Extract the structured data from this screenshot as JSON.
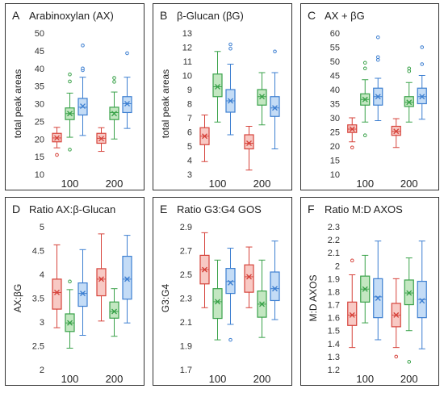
{
  "colors": {
    "frame": "#333333",
    "red": "#d6433b",
    "red_fill": "#f8c9c4",
    "green": "#3aa24a",
    "green_fill": "#c3e7c1",
    "blue": "#3d7fd1",
    "blue_fill": "#c4dcf6"
  },
  "chart_data": [
    {
      "type": "box",
      "panel": "A",
      "title": "Arabinoxylan (AX)",
      "ylabel": "total peak areas",
      "ylim": [
        10,
        50
      ],
      "yticks": [
        "10",
        "15",
        "20",
        "25",
        "30",
        "35",
        "40",
        "45",
        "50"
      ],
      "categories": [
        "100",
        "200"
      ],
      "series": [
        {
          "color": "red",
          "boxes": [
            {
              "min": 17.5,
              "q1": 19.2,
              "median": 20.3,
              "q3": 21.6,
              "max": 23.3,
              "mean": 20.3,
              "outliers": [
                15.5
              ]
            },
            {
              "min": 16.5,
              "q1": 18.8,
              "median": 20.2,
              "q3": 21.6,
              "max": 23.2,
              "mean": 20.1,
              "outliers": []
            }
          ]
        },
        {
          "color": "green",
          "boxes": [
            {
              "min": 20.5,
              "q1": 25.5,
              "median": 27.2,
              "q3": 28.8,
              "max": 33.0,
              "mean": 27.2,
              "outliers": [
                17.0,
                36.3,
                38.3
              ]
            },
            {
              "min": 20.0,
              "q1": 25.5,
              "median": 27.5,
              "q3": 29.0,
              "max": 33.3,
              "mean": 27.2,
              "outliers": [
                36.2,
                37.3
              ]
            }
          ]
        },
        {
          "color": "blue",
          "boxes": [
            {
              "min": 21.0,
              "q1": 26.8,
              "median": 29.0,
              "q3": 31.5,
              "max": 37.5,
              "mean": 29.3,
              "outliers": [
                39.5,
                40.0,
                46.5
              ]
            },
            {
              "min": 23.0,
              "q1": 27.5,
              "median": 30.0,
              "q3": 32.0,
              "max": 37.5,
              "mean": 30.0,
              "outliers": [
                44.3
              ]
            }
          ]
        }
      ]
    },
    {
      "type": "box",
      "panel": "B",
      "title": "β-Glucan (βG)",
      "ylabel": "total peak areas",
      "ylim": [
        3,
        13
      ],
      "yticks": [
        "3",
        "4",
        "5",
        "6",
        "7",
        "8",
        "9",
        "10",
        "11",
        "12",
        "13"
      ],
      "categories": [
        "100",
        "200"
      ],
      "series": [
        {
          "color": "red",
          "boxes": [
            {
              "min": 3.9,
              "q1": 5.1,
              "median": 5.7,
              "q3": 6.3,
              "max": 7.2,
              "mean": 5.7,
              "outliers": []
            },
            {
              "min": 3.3,
              "q1": 4.8,
              "median": 5.2,
              "q3": 5.8,
              "max": 6.4,
              "mean": 5.2,
              "outliers": []
            }
          ]
        },
        {
          "color": "green",
          "boxes": [
            {
              "min": 6.7,
              "q1": 8.5,
              "median": 9.2,
              "q3": 10.1,
              "max": 11.7,
              "mean": 9.2,
              "outliers": []
            },
            {
              "min": 6.5,
              "q1": 7.9,
              "median": 8.5,
              "q3": 9.0,
              "max": 10.2,
              "mean": 8.5,
              "outliers": []
            }
          ]
        },
        {
          "color": "blue",
          "boxes": [
            {
              "min": 5.8,
              "q1": 7.4,
              "median": 8.2,
              "q3": 9.0,
              "max": 10.8,
              "mean": 8.2,
              "outliers": [
                11.9,
                12.2
              ]
            },
            {
              "min": 4.8,
              "q1": 7.1,
              "median": 7.7,
              "q3": 8.5,
              "max": 10.2,
              "mean": 7.7,
              "outliers": [
                11.7
              ]
            }
          ]
        }
      ]
    },
    {
      "type": "box",
      "panel": "C",
      "title": "AX + βG",
      "ylabel": "",
      "ylim": [
        10,
        60
      ],
      "yticks": [
        "10",
        "15",
        "20",
        "25",
        "30",
        "35",
        "40",
        "45",
        "50",
        "55",
        "60"
      ],
      "categories": [
        "100",
        "200"
      ],
      "series": [
        {
          "color": "red",
          "boxes": [
            {
              "min": 21.5,
              "q1": 24.8,
              "median": 26.0,
              "q3": 27.5,
              "max": 30.0,
              "mean": 26.0,
              "outliers": [
                19.5
              ]
            },
            {
              "min": 19.5,
              "q1": 23.8,
              "median": 25.2,
              "q3": 27.0,
              "max": 29.7,
              "mean": 25.2,
              "outliers": []
            }
          ]
        },
        {
          "color": "green",
          "boxes": [
            {
              "min": 28.5,
              "q1": 34.5,
              "median": 36.5,
              "q3": 38.5,
              "max": 43.5,
              "mean": 36.5,
              "outliers": [
                23.8,
                47.5,
                49.5
              ]
            },
            {
              "min": 28.5,
              "q1": 34.0,
              "median": 35.5,
              "q3": 37.5,
              "max": 42.5,
              "mean": 35.5,
              "outliers": [
                46.5,
                47.5
              ]
            }
          ]
        },
        {
          "color": "blue",
          "boxes": [
            {
              "min": 29.0,
              "q1": 34.5,
              "median": 37.5,
              "q3": 40.5,
              "max": 44.0,
              "mean": 37.5,
              "outliers": [
                50.5,
                51.5,
                58.5
              ]
            },
            {
              "min": 29.5,
              "q1": 35.0,
              "median": 37.5,
              "q3": 40.5,
              "max": 45.0,
              "mean": 37.5,
              "outliers": [
                49.0,
                55.0
              ]
            }
          ]
        }
      ]
    },
    {
      "type": "box",
      "panel": "D",
      "title": "Ratio AX:β-Glucan",
      "ylabel": "AX:βG",
      "ylim": [
        2,
        5
      ],
      "yticks": [
        "2",
        "2.5",
        "3",
        "3.5",
        "4",
        "4.5",
        "5"
      ],
      "categories": [
        "100",
        "200"
      ],
      "series": [
        {
          "color": "red",
          "boxes": [
            {
              "min": 2.88,
              "q1": 3.27,
              "median": 3.62,
              "q3": 3.9,
              "max": 4.62,
              "mean": 3.62,
              "outliers": []
            },
            {
              "min": 3.02,
              "q1": 3.55,
              "median": 3.9,
              "q3": 4.12,
              "max": 4.85,
              "mean": 3.9,
              "outliers": []
            }
          ]
        },
        {
          "color": "green",
          "boxes": [
            {
              "min": 2.45,
              "q1": 2.8,
              "median": 2.98,
              "q3": 3.17,
              "max": 3.68,
              "mean": 2.98,
              "outliers": [
                3.85
              ]
            },
            {
              "min": 2.7,
              "q1": 3.08,
              "median": 3.22,
              "q3": 3.42,
              "max": 3.7,
              "mean": 3.22,
              "outliers": []
            }
          ]
        },
        {
          "color": "blue",
          "boxes": [
            {
              "min": 2.72,
              "q1": 3.33,
              "median": 3.6,
              "q3": 3.82,
              "max": 4.52,
              "mean": 3.6,
              "outliers": []
            },
            {
              "min": 2.98,
              "q1": 3.48,
              "median": 3.9,
              "q3": 4.38,
              "max": 4.82,
              "mean": 3.9,
              "outliers": []
            }
          ]
        }
      ]
    },
    {
      "type": "box",
      "panel": "E",
      "title": "Ratio G3:G4 GOS",
      "ylabel": "G3:G4",
      "ylim": [
        1.7,
        2.9
      ],
      "yticks": [
        "1.7",
        "1.9",
        "2.1",
        "2.3",
        "2.5",
        "2.7",
        "2.9"
      ],
      "categories": [
        "100",
        "200"
      ],
      "series": [
        {
          "color": "red",
          "boxes": [
            {
              "min": 2.22,
              "q1": 2.42,
              "median": 2.54,
              "q3": 2.66,
              "max": 2.85,
              "mean": 2.54,
              "outliers": []
            },
            {
              "min": 2.22,
              "q1": 2.35,
              "median": 2.48,
              "q3": 2.58,
              "max": 2.73,
              "mean": 2.48,
              "outliers": []
            }
          ]
        },
        {
          "color": "green",
          "boxes": [
            {
              "min": 1.95,
              "q1": 2.13,
              "median": 2.27,
              "q3": 2.38,
              "max": 2.62,
              "mean": 2.27,
              "outliers": []
            },
            {
              "min": 1.97,
              "q1": 2.14,
              "median": 2.25,
              "q3": 2.36,
              "max": 2.62,
              "mean": 2.25,
              "outliers": []
            }
          ]
        },
        {
          "color": "blue",
          "boxes": [
            {
              "min": 2.08,
              "q1": 2.34,
              "median": 2.44,
              "q3": 2.55,
              "max": 2.72,
              "mean": 2.43,
              "outliers": [
                1.95
              ]
            },
            {
              "min": 2.12,
              "q1": 2.28,
              "median": 2.38,
              "q3": 2.52,
              "max": 2.78,
              "mean": 2.38,
              "outliers": []
            }
          ]
        }
      ]
    },
    {
      "type": "box",
      "panel": "F",
      "title": "Ratio M:D  AXOS",
      "ylabel": "M:D AXOS",
      "ylim": [
        1.2,
        2.3
      ],
      "yticks": [
        "1.2",
        "1.3",
        "1.4",
        "1.5",
        "1.6",
        "1.7",
        "1.8",
        "1.9",
        "2",
        "2.1",
        "2.2",
        "2.3"
      ],
      "categories": [
        "100",
        "200"
      ],
      "series": [
        {
          "color": "red",
          "boxes": [
            {
              "min": 1.37,
              "q1": 1.54,
              "median": 1.62,
              "q3": 1.72,
              "max": 1.93,
              "mean": 1.62,
              "outliers": [
                2.04
              ]
            },
            {
              "min": 1.37,
              "q1": 1.53,
              "median": 1.62,
              "q3": 1.71,
              "max": 1.9,
              "mean": 1.62,
              "outliers": [
                1.3
              ]
            }
          ]
        },
        {
          "color": "green",
          "boxes": [
            {
              "min": 1.56,
              "q1": 1.72,
              "median": 1.82,
              "q3": 1.92,
              "max": 2.08,
              "mean": 1.82,
              "outliers": []
            },
            {
              "min": 1.5,
              "q1": 1.7,
              "median": 1.79,
              "q3": 1.89,
              "max": 2.06,
              "mean": 1.79,
              "outliers": [
                1.26
              ]
            }
          ]
        },
        {
          "color": "blue",
          "boxes": [
            {
              "min": 1.43,
              "q1": 1.6,
              "median": 1.76,
              "q3": 1.9,
              "max": 2.19,
              "mean": 1.75,
              "outliers": []
            },
            {
              "min": 1.36,
              "q1": 1.6,
              "median": 1.74,
              "q3": 1.88,
              "max": 2.19,
              "mean": 1.73,
              "outliers": []
            }
          ]
        }
      ]
    }
  ]
}
